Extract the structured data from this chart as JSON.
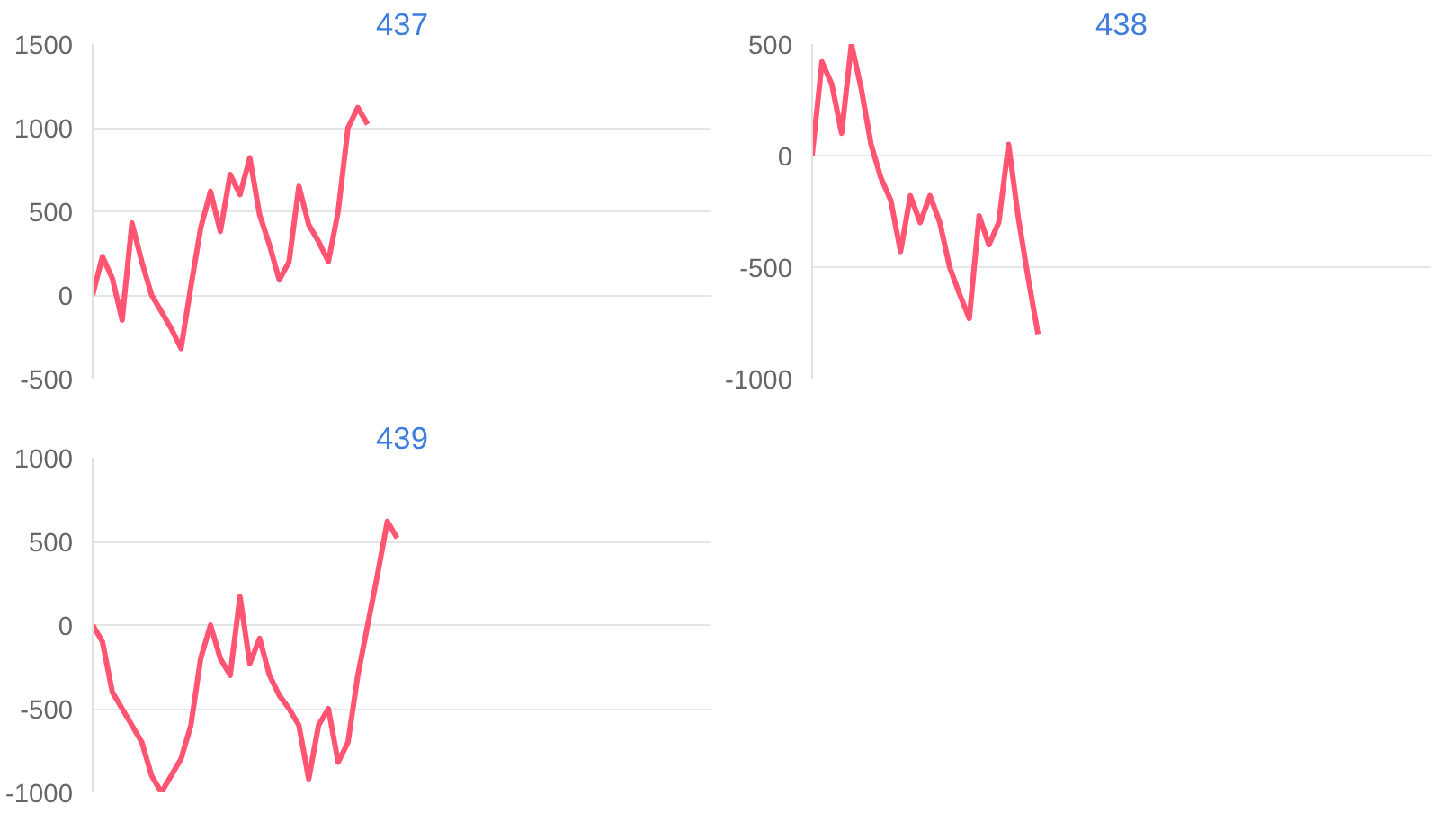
{
  "chart_data": [
    {
      "type": "line",
      "title": "437",
      "categories": [
        null,
        null,
        null,
        null,
        null,
        null,
        null,
        null,
        null,
        null,
        null,
        null,
        null,
        null,
        null,
        null,
        null,
        null,
        null,
        null,
        null,
        null,
        null,
        null,
        null,
        null,
        null,
        null,
        null,
        null,
        null,
        null,
        null,
        null,
        null,
        null,
        null,
        null,
        null,
        null,
        null,
        null,
        null,
        null,
        null,
        null,
        null,
        null,
        null,
        null,
        null,
        null,
        null,
        null,
        null,
        null,
        null,
        null,
        null,
        null,
        null,
        null,
        null,
        null
      ],
      "series": [
        {
          "color": "#ff5573",
          "values": [
            0,
            230,
            100,
            -150,
            430,
            200,
            0,
            -100,
            -200,
            -320,
            50,
            400,
            620,
            380,
            720,
            600,
            820,
            480,
            300,
            90,
            200,
            650,
            420,
            320,
            200,
            500,
            1000,
            1120,
            1020,
            null,
            null,
            null,
            null,
            null,
            null,
            null,
            null,
            null,
            null,
            null,
            null,
            null,
            null,
            null,
            null,
            null,
            null,
            null,
            null,
            null,
            null,
            null,
            null,
            null,
            null,
            null,
            null,
            null,
            null,
            null,
            null,
            null,
            null,
            null
          ]
        }
      ],
      "ylim": [
        -500,
        1500
      ],
      "yticks": [
        -500,
        0,
        500,
        1000,
        1500
      ],
      "grid": "y",
      "tick_labels": "y",
      "marker": "none",
      "line_style": "solid"
    },
    {
      "type": "line",
      "title": "438",
      "categories": [
        null,
        null,
        null,
        null,
        null,
        null,
        null,
        null,
        null,
        null,
        null,
        null,
        null,
        null,
        null,
        null,
        null,
        null,
        null,
        null,
        null,
        null,
        null,
        null,
        null,
        null,
        null,
        null,
        null,
        null,
        null,
        null,
        null,
        null,
        null,
        null,
        null,
        null,
        null,
        null,
        null,
        null,
        null,
        null,
        null,
        null,
        null,
        null,
        null,
        null,
        null,
        null,
        null,
        null,
        null,
        null,
        null,
        null,
        null,
        null,
        null,
        null,
        null,
        null
      ],
      "series": [
        {
          "color": "#ff5573",
          "values": [
            0,
            420,
            320,
            100,
            500,
            300,
            50,
            -100,
            -200,
            -430,
            -180,
            -300,
            -180,
            -300,
            -500,
            -620,
            -730,
            -270,
            -400,
            -300,
            50,
            -280,
            -550,
            -800,
            null,
            null,
            null,
            null,
            null,
            null,
            null,
            null,
            null,
            null,
            null,
            null,
            null,
            null,
            null,
            null,
            null,
            null,
            null,
            null,
            null,
            null,
            null,
            null,
            null,
            null,
            null,
            null,
            null,
            null,
            null,
            null,
            null,
            null,
            null,
            null,
            null,
            null,
            null,
            null
          ]
        }
      ],
      "ylim": [
        -1000,
        500
      ],
      "yticks": [
        -1000,
        -500,
        0,
        500
      ],
      "grid": "y",
      "tick_labels": "y",
      "marker": "none",
      "line_style": "solid"
    },
    {
      "type": "line",
      "title": "439",
      "categories": [
        null,
        null,
        null,
        null,
        null,
        null,
        null,
        null,
        null,
        null,
        null,
        null,
        null,
        null,
        null,
        null,
        null,
        null,
        null,
        null,
        null,
        null,
        null,
        null,
        null,
        null,
        null,
        null,
        null,
        null,
        null,
        null,
        null,
        null,
        null,
        null,
        null,
        null,
        null,
        null,
        null,
        null,
        null,
        null,
        null,
        null,
        null,
        null,
        null,
        null,
        null,
        null,
        null,
        null,
        null,
        null,
        null,
        null,
        null,
        null,
        null,
        null,
        null,
        null
      ],
      "series": [
        {
          "color": "#ff5573",
          "values": [
            0,
            -100,
            -400,
            -500,
            -600,
            -700,
            -900,
            -1000,
            -900,
            -800,
            -600,
            -200,
            0,
            -200,
            -300,
            170,
            -230,
            -80,
            -300,
            -420,
            -500,
            -600,
            -920,
            -600,
            -500,
            -820,
            -700,
            -300,
            0,
            300,
            620,
            520,
            null,
            null,
            null,
            null,
            null,
            null,
            null,
            null,
            null,
            null,
            null,
            null,
            null,
            null,
            null,
            null,
            null,
            null,
            null,
            null,
            null,
            null,
            null,
            null,
            null,
            null,
            null,
            null,
            null,
            null,
            null,
            null
          ]
        }
      ],
      "ylim": [
        -1000,
        1000
      ],
      "yticks": [
        -1000,
        -500,
        0,
        500,
        1000
      ],
      "grid": "y",
      "tick_labels": "y",
      "marker": "none",
      "line_style": "solid"
    }
  ]
}
